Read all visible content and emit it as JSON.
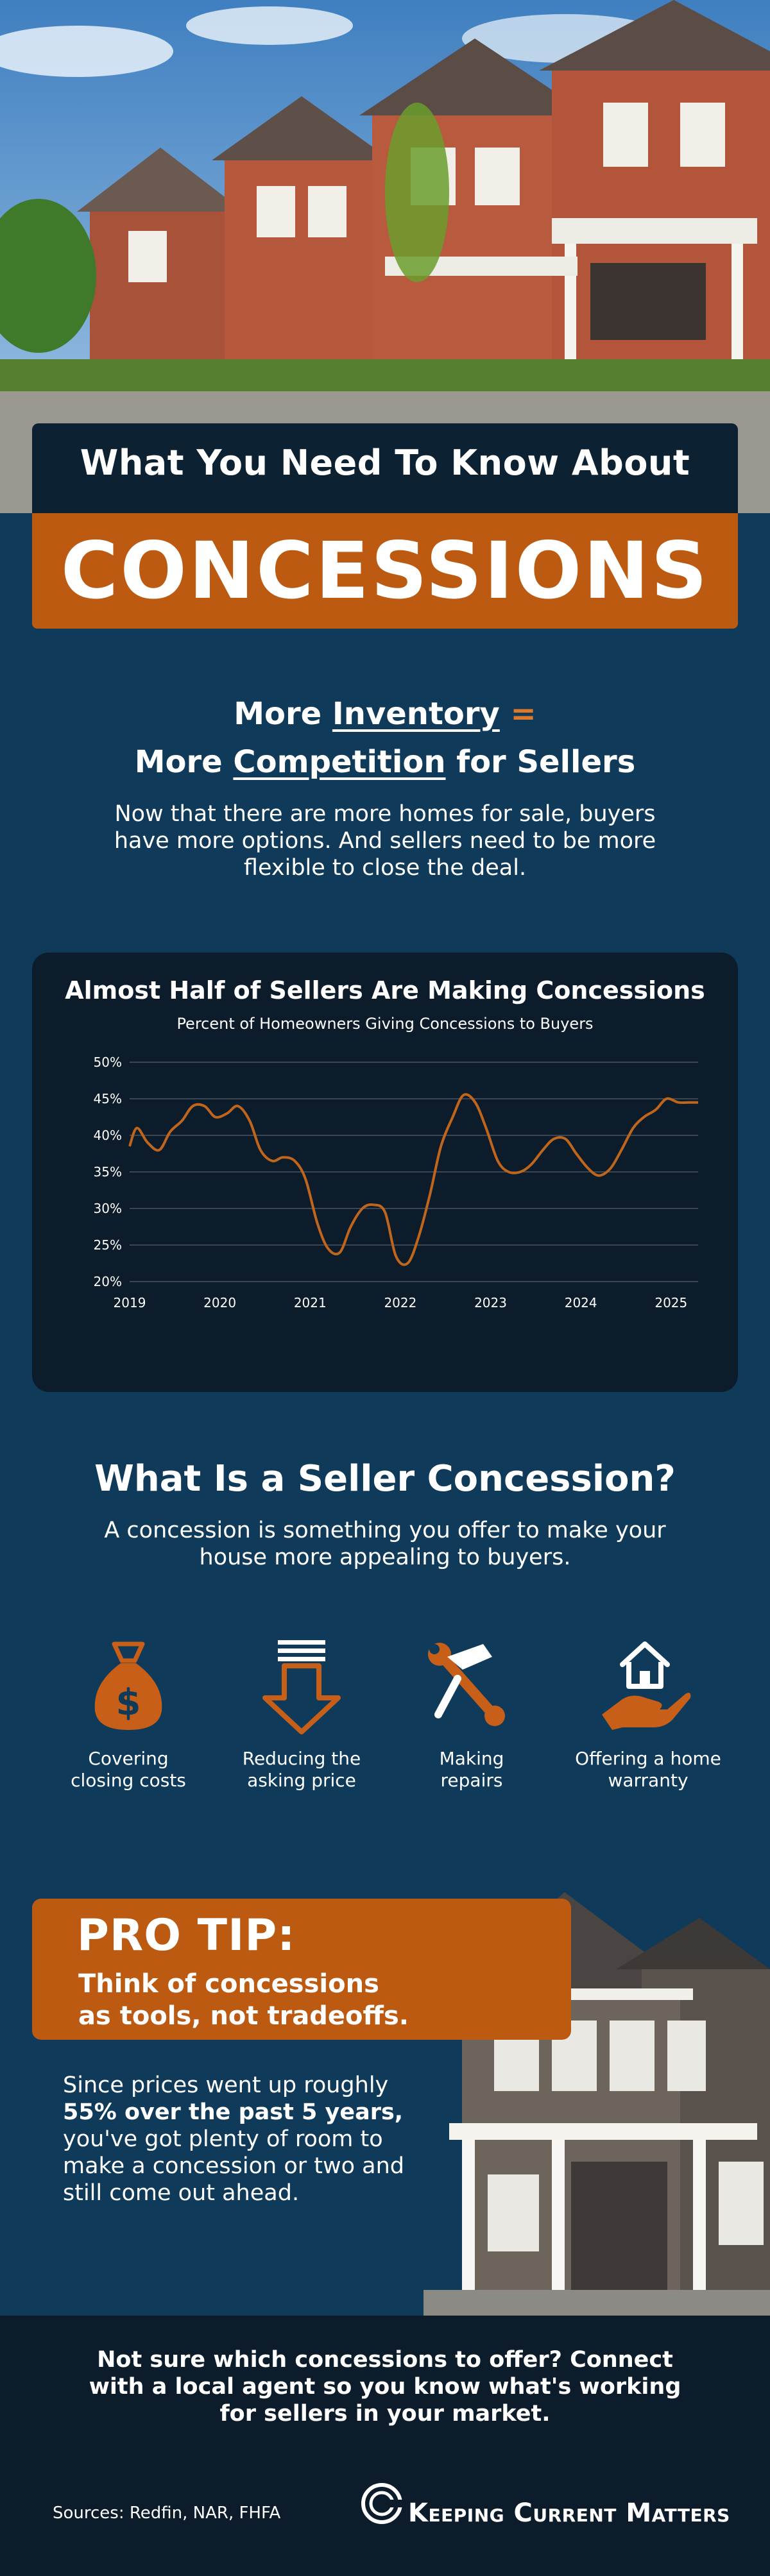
{
  "header": {
    "title_line": "What You Need To Know About",
    "title_big": "CONCESSIONS"
  },
  "inventory": {
    "line1_pre": "More ",
    "line1_ul": "Inventory",
    "line1_eq": " =",
    "line2_pre": "More ",
    "line2_ul": "Competition",
    "line2_post": " for Sellers",
    "body": "Now that there are more homes for sale, buyers have more options. And sellers need to be more flexible to close the deal."
  },
  "chart_data": {
    "type": "line",
    "title": "Almost Half of Sellers Are Making Concessions",
    "subtitle": "Percent of Homeowners Giving Concessions to Buyers",
    "x_ticks": [
      "2019",
      "2020",
      "2021",
      "2022",
      "2023",
      "2024",
      "2025"
    ],
    "y_ticks": [
      "20%",
      "25%",
      "30%",
      "35%",
      "40%",
      "45%",
      "50%"
    ],
    "ylim": [
      20,
      50
    ],
    "xlim": [
      2019.0,
      2025.3
    ],
    "grid": true,
    "color": "#c0651c",
    "x": [
      2019.0,
      2019.08,
      2019.2,
      2019.33,
      2019.45,
      2019.58,
      2019.7,
      2019.83,
      2019.95,
      2020.08,
      2020.2,
      2020.33,
      2020.45,
      2020.58,
      2020.7,
      2020.83,
      2020.95,
      2021.08,
      2021.2,
      2021.33,
      2021.45,
      2021.58,
      2021.7,
      2021.83,
      2021.95,
      2022.08,
      2022.2,
      2022.33,
      2022.45,
      2022.58,
      2022.7,
      2022.83,
      2022.95,
      2023.08,
      2023.2,
      2023.33,
      2023.45,
      2023.58,
      2023.7,
      2023.83,
      2023.95,
      2024.08,
      2024.2,
      2024.33,
      2024.45,
      2024.58,
      2024.7,
      2024.83,
      2024.95,
      2025.08,
      2025.2,
      2025.3
    ],
    "values": [
      38.5,
      41.0,
      39.0,
      38.0,
      40.5,
      42.0,
      44.0,
      44.0,
      42.5,
      43.0,
      44.0,
      42.0,
      38.0,
      36.5,
      37.0,
      36.5,
      34.0,
      28.0,
      24.5,
      24.0,
      27.5,
      30.0,
      30.5,
      29.5,
      23.5,
      22.5,
      26.0,
      32.0,
      38.5,
      42.5,
      45.5,
      44.5,
      41.0,
      36.5,
      35.0,
      35.0,
      36.0,
      38.0,
      39.5,
      39.5,
      37.5,
      35.5,
      34.5,
      35.5,
      38.0,
      41.0,
      42.5,
      43.5,
      45.0,
      44.5,
      44.5,
      44.5
    ]
  },
  "concession": {
    "title": "What Is a Seller Concession?",
    "body": "A concession is something you offer to make your house more appealing to buyers.",
    "items": [
      {
        "icon": "money-bag-icon",
        "line1": "Covering",
        "line2": "closing costs"
      },
      {
        "icon": "down-arrow-icon",
        "line1": "Reducing the",
        "line2": "asking price"
      },
      {
        "icon": "hammer-wrench-icon",
        "line1": "Making",
        "line2": "repairs"
      },
      {
        "icon": "hand-house-icon",
        "line1": "Offering a home",
        "line2": "warranty"
      }
    ]
  },
  "tip": {
    "heading": "PRO TIP:",
    "sub1": "Think of concessions",
    "sub2": "as tools, not tradeoffs.",
    "body_pre": "Since prices went up roughly ",
    "body_bold": "55% over the past 5 years,",
    "body_post": " you've got plenty of room to make a concession or two and still come out ahead."
  },
  "footer": {
    "cta": "Not sure which concessions to offer? Connect with a local agent so you know what's working for sellers in your market.",
    "sources": "Sources: Redfin, NAR, FHFA",
    "logo_text": "Keeping Current Matters"
  },
  "colors": {
    "navy": "#0f3a5a",
    "dark": "#0c1c2b",
    "orange": "#bd5a12",
    "icon_orange": "#c85f18"
  }
}
